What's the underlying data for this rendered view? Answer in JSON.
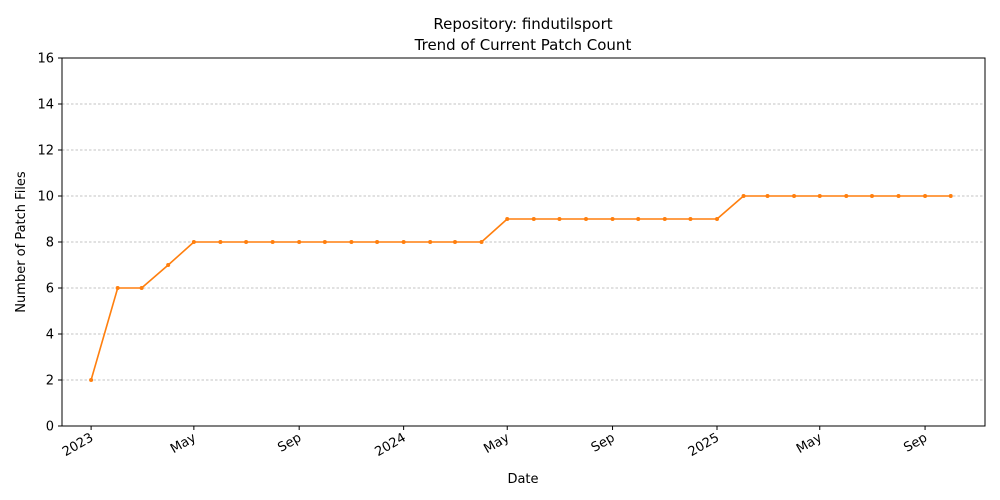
{
  "chart_data": {
    "type": "line",
    "title": "Repository: findutilsport",
    "subtitle": "Trend of Current Patch Count",
    "xlabel": "Date",
    "ylabel": "Number of Patch Files",
    "ylim": [
      0,
      16
    ],
    "yticks": [
      0,
      2,
      4,
      6,
      8,
      10,
      12,
      14,
      16
    ],
    "xlim": [
      "2022-11-28",
      "2025-11-10"
    ],
    "xticks": [
      {
        "date": "2023-01-01",
        "label": "2023"
      },
      {
        "date": "2023-05-01",
        "label": "May"
      },
      {
        "date": "2023-09-01",
        "label": "Sep"
      },
      {
        "date": "2024-01-01",
        "label": "2024"
      },
      {
        "date": "2024-05-01",
        "label": "May"
      },
      {
        "date": "2024-09-01",
        "label": "Sep"
      },
      {
        "date": "2025-01-01",
        "label": "2025"
      },
      {
        "date": "2025-05-01",
        "label": "May"
      },
      {
        "date": "2025-09-01",
        "label": "Sep"
      }
    ],
    "grid": "horizontal-dashed",
    "line_color": "#ff7f0e",
    "series": [
      {
        "x": [
          "2023-01-01",
          "2023-02-01",
          "2023-03-01",
          "2023-04-01",
          "2023-05-01",
          "2023-06-01",
          "2023-07-01",
          "2023-08-01",
          "2023-09-01",
          "2023-10-01",
          "2023-11-01",
          "2023-12-01",
          "2024-01-01",
          "2024-02-01",
          "2024-03-01",
          "2024-04-01",
          "2024-05-01",
          "2024-06-01",
          "2024-07-01",
          "2024-08-01",
          "2024-09-01",
          "2024-10-01",
          "2024-11-01",
          "2024-12-01",
          "2025-01-01",
          "2025-02-01",
          "2025-03-01",
          "2025-04-01",
          "2025-05-01",
          "2025-06-01",
          "2025-07-01",
          "2025-08-01",
          "2025-09-01",
          "2025-10-01"
        ],
        "values": [
          2,
          6,
          6,
          7,
          8,
          8,
          8,
          8,
          8,
          8,
          8,
          8,
          8,
          8,
          8,
          8,
          9,
          9,
          9,
          9,
          9,
          9,
          9,
          9,
          9,
          10,
          10,
          10,
          10,
          10,
          10,
          10,
          10,
          10
        ]
      }
    ]
  }
}
